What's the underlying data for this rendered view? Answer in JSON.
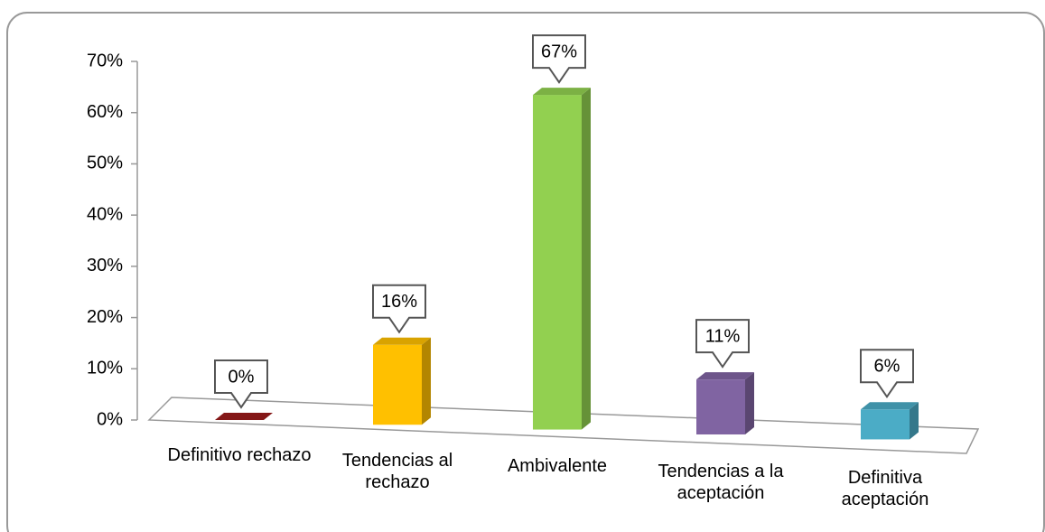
{
  "chart_data": {
    "type": "bar3d",
    "categories": [
      "Definitivo rechazo",
      "Tendencias al rechazo",
      "Ambivalente",
      "Tendencias a la aceptación",
      "Definitiva aceptación"
    ],
    "values": [
      0,
      16,
      67,
      11,
      6
    ],
    "value_labels": [
      "0%",
      "16%",
      "67%",
      "11%",
      "6%"
    ],
    "colors": [
      "#9b1b1b",
      "#ffc000",
      "#92d050",
      "#8064a2",
      "#4bacc6"
    ],
    "ylim": [
      0,
      70
    ],
    "yticks": [
      {
        "value": 0,
        "label": "0%"
      },
      {
        "value": 10,
        "label": "10%"
      },
      {
        "value": 20,
        "label": "20%"
      },
      {
        "value": 30,
        "label": "30%"
      },
      {
        "value": 40,
        "label": "40%"
      },
      {
        "value": 50,
        "label": "50%"
      },
      {
        "value": 60,
        "label": "60%"
      },
      {
        "value": 70,
        "label": "70%"
      }
    ]
  }
}
